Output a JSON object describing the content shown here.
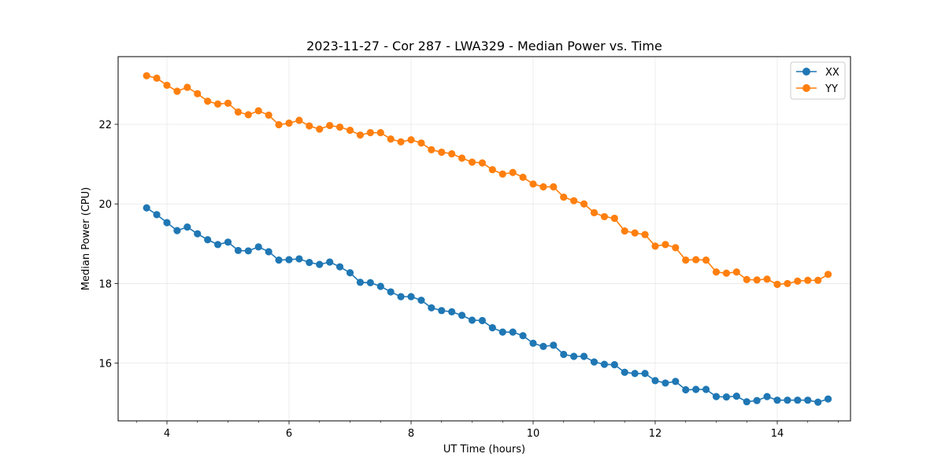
{
  "chart_data": {
    "type": "line",
    "title": "2023-11-27 - Cor 287 - LWA329 - Median Power vs. Time",
    "xlabel": "UT Time (hours)",
    "ylabel": "Median Power (CPU)",
    "xlim": [
      3.2,
      15.2
    ],
    "ylim": [
      14.55,
      23.7
    ],
    "xticks": [
      4,
      6,
      8,
      10,
      12,
      14
    ],
    "xticklabels": [
      "4",
      "6",
      "8",
      "10",
      "12",
      "14"
    ],
    "xminor": [
      3.5,
      4.5,
      5.0,
      5.5,
      6.5,
      7.0,
      7.5,
      8.5,
      9.0,
      9.5,
      10.5,
      11.0,
      11.5,
      12.5,
      13.0,
      13.5,
      14.5,
      15.0
    ],
    "yticks": [
      16,
      18,
      20,
      22
    ],
    "yticklabels": [
      "16",
      "18",
      "20",
      "22"
    ],
    "grid": true,
    "legend_position": "top-right",
    "x": [
      3.667,
      3.833,
      4.0,
      4.167,
      4.333,
      4.5,
      4.667,
      4.833,
      5.0,
      5.167,
      5.333,
      5.5,
      5.667,
      5.833,
      6.0,
      6.167,
      6.333,
      6.5,
      6.667,
      6.833,
      7.0,
      7.167,
      7.333,
      7.5,
      7.667,
      7.833,
      8.0,
      8.167,
      8.333,
      8.5,
      8.667,
      8.833,
      9.0,
      9.167,
      9.333,
      9.5,
      9.667,
      9.833,
      10.0,
      10.167,
      10.333,
      10.5,
      10.667,
      10.833,
      11.0,
      11.167,
      11.333,
      11.5,
      11.667,
      11.833,
      12.0,
      12.167,
      12.333,
      12.5,
      12.667,
      12.833,
      13.0,
      13.167,
      13.333,
      13.5,
      13.667,
      13.833,
      14.0,
      14.167,
      14.333,
      14.5,
      14.667,
      14.833
    ],
    "series": [
      {
        "name": "XX",
        "color": "#1f77b4",
        "values": [
          19.9,
          19.73,
          19.53,
          19.33,
          19.42,
          19.25,
          19.1,
          18.98,
          19.04,
          18.83,
          18.82,
          18.92,
          18.8,
          18.59,
          18.6,
          18.62,
          18.53,
          18.48,
          18.54,
          18.42,
          18.27,
          18.03,
          18.02,
          17.93,
          17.79,
          17.67,
          17.67,
          17.58,
          17.39,
          17.32,
          17.29,
          17.2,
          17.08,
          17.07,
          16.89,
          16.78,
          16.78,
          16.69,
          16.5,
          16.42,
          16.45,
          16.22,
          16.17,
          16.17,
          16.03,
          15.97,
          15.96,
          15.77,
          15.74,
          15.74,
          15.56,
          15.5,
          15.54,
          15.33,
          15.34,
          15.34,
          15.16,
          15.15,
          15.17,
          15.03,
          15.06,
          15.16,
          15.07,
          15.07,
          15.07,
          15.07,
          15.02,
          15.1
        ]
      },
      {
        "name": "YY",
        "color": "#ff7f0e",
        "values": [
          23.22,
          23.16,
          22.98,
          22.83,
          22.93,
          22.77,
          22.58,
          22.51,
          22.53,
          22.31,
          22.24,
          22.34,
          22.23,
          21.99,
          22.03,
          22.1,
          21.96,
          21.88,
          21.97,
          21.93,
          21.85,
          21.73,
          21.79,
          21.79,
          21.63,
          21.56,
          21.61,
          21.53,
          21.36,
          21.3,
          21.26,
          21.15,
          21.05,
          21.03,
          20.86,
          20.75,
          20.79,
          20.67,
          20.5,
          20.43,
          20.43,
          20.17,
          20.08,
          20.0,
          19.78,
          19.68,
          19.64,
          19.32,
          19.27,
          19.23,
          18.94,
          18.98,
          18.9,
          18.59,
          18.6,
          18.59,
          18.29,
          18.26,
          18.29,
          18.1,
          18.09,
          18.11,
          17.98,
          18.0,
          18.06,
          18.08,
          18.08,
          18.23
        ]
      }
    ]
  }
}
